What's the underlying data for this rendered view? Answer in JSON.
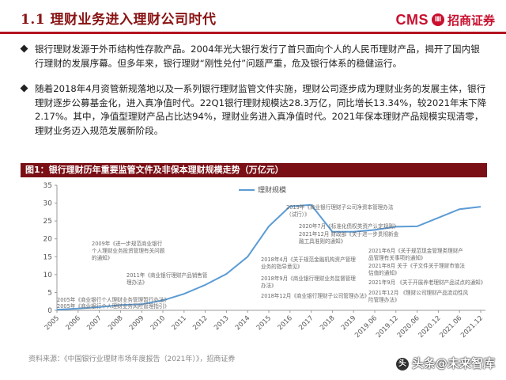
{
  "page": {
    "title": "1.1 理财业务进入理财公司时代",
    "logo_text": "CMS",
    "logo_seal": "Ⅲ",
    "logo_cn": "招商证券"
  },
  "bullets": [
    "银行理财发源于外币结构性存款产品。2004年光大银行发行了首只面向个人的人民币理财产品，揭开了国内银行理财的发展序幕。但多年来，银行理财“刚性兑付”问题严重，危及银行体系的稳健运行。",
    "随着2018年4月资管新规落地以及一系列银行理财监管文件实施，理财公司逐步成为理财业务的发展主体，银行理财逐步公募基金化，进入真净值时代。22Q1银行理财规模达28.3万亿，同比增长13.34%，较2021年末下降2.17%。其中，净值型理财产品占比达94%，理财业务进入真净值时代。2021年保本理财产品规模实现清零，理财业务迈入规范发展新阶段。"
  ],
  "figure": {
    "header": "图1：银行理财历年重要监管文件及非保本理财规模走势（万亿元）",
    "source": "资料来源：《中国银行业理财市场年度报告（2021年）》，招商证券"
  },
  "chart_data": {
    "type": "line",
    "title": "",
    "xlabel": "",
    "ylabel": "",
    "ylim": [
      0,
      35
    ],
    "yticks": [
      0,
      5,
      10,
      15,
      20,
      25,
      30,
      35
    ],
    "grid": false,
    "legend_position": "top-left",
    "series_color": "#5b9bd5",
    "categories": [
      "2005",
      "2006",
      "2007",
      "2008",
      "2009",
      "2010",
      "2011",
      "2012",
      "2013",
      "2014",
      "2015",
      "2016",
      "2017",
      "2018",
      "2019",
      "2019.06",
      "2019.12",
      "2020.06",
      "2020.12",
      "2021.06",
      "2021.12"
    ],
    "series": [
      {
        "name": "理财规模",
        "values": [
          0.2,
          0.5,
          0.9,
          1.5,
          1.7,
          2.8,
          4.6,
          7.1,
          10.2,
          15.0,
          23.5,
          29.1,
          29.5,
          22.0,
          22.0,
          22.5,
          23.4,
          23.5,
          25.9,
          28.3,
          29.0
        ]
      }
    ],
    "annotations": [
      {
        "text": "2005年《商业银行个人理财业务管理暂行办法》",
        "anchor_index": 0
      },
      {
        "text": "2005年《商业银行个人理财业务风险管理指引》",
        "anchor_index": 0
      },
      {
        "text": "2009年《进一步规范商业银行个人理财业务投资管理有关问题的通知》",
        "anchor_index": 4
      },
      {
        "text": "2011年《商业银行理财产品销售管理办法》",
        "anchor_index": 6
      },
      {
        "text": "2018年4月《关于规范金融机构资产管理业务的指导意见》",
        "anchor_index": 13
      },
      {
        "text": "2018年9月《商业银行理财业务监督管理办法》",
        "anchor_index": 13
      },
      {
        "text": "2018年12月《商业银行理财子公司管理办法》",
        "anchor_index": 13
      },
      {
        "text": "2019年《商业银行理财子公司净资本管理办法（试行）》",
        "anchor_index": 15
      },
      {
        "text": "2020年7月《标准化债权类资产认定规则》",
        "anchor_index": 17
      },
      {
        "text": "2021年12月 财政部《关于进一步贯彻新金融工具准则的通知》",
        "anchor_index": 18
      },
      {
        "text": "2021年6月《关于规范现金管理类理财产品管理有关事项的通知》",
        "anchor_index": 19
      },
      {
        "text": "2021年8月 关于《子文件关于理财市值法估值的通知》",
        "anchor_index": 19
      },
      {
        "text": "2021年9月 《关于开展养老理财产品试点的通知》",
        "anchor_index": 19
      },
      {
        "text": "2021年12月 《理财公司理财产品流动性风险管理办法》",
        "anchor_index": 20
      }
    ]
  },
  "watermark": {
    "icon": "头",
    "text": "头条@未来智库"
  }
}
